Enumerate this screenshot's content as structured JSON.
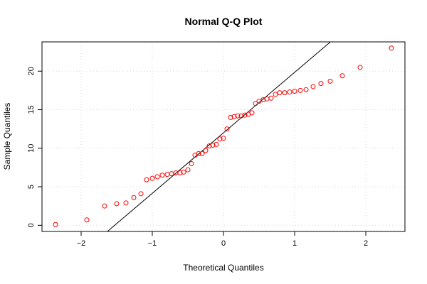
{
  "chart_data": {
    "type": "scatter",
    "title": "Normal Q-Q Plot",
    "xlabel": "Theoretical Quantiles",
    "ylabel": "Sample Quantiles",
    "xlim": [
      -2.55,
      2.55
    ],
    "ylim": [
      -0.8,
      23.8
    ],
    "x_ticks": [
      -2,
      -1,
      0,
      1,
      2
    ],
    "x_tick_labels": [
      "−2",
      "−1",
      "0",
      "1",
      "2"
    ],
    "y_ticks": [
      0,
      5,
      10,
      15,
      20
    ],
    "y_tick_labels": [
      "0",
      "5",
      "10",
      "15",
      "20"
    ],
    "grid": true,
    "point_color": "#ff0000",
    "reference_line": {
      "slope": 7.85,
      "intercept": 12.0
    },
    "x": [
      -2.36,
      -1.92,
      -1.67,
      -1.5,
      -1.37,
      -1.26,
      -1.16,
      -1.08,
      -1.0,
      -0.93,
      -0.86,
      -0.79,
      -0.73,
      -0.67,
      -0.61,
      -0.56,
      -0.5,
      -0.45,
      -0.4,
      -0.35,
      -0.3,
      -0.25,
      -0.2,
      -0.15,
      -0.1,
      -0.05,
      0.0,
      0.05,
      0.1,
      0.15,
      0.2,
      0.25,
      0.3,
      0.35,
      0.4,
      0.45,
      0.5,
      0.56,
      0.61,
      0.67,
      0.73,
      0.79,
      0.86,
      0.93,
      1.0,
      1.08,
      1.16,
      1.26,
      1.37,
      1.5,
      1.67,
      1.92,
      2.36
    ],
    "y": [
      0.1,
      0.7,
      2.5,
      2.8,
      2.9,
      3.6,
      4.1,
      5.9,
      6.1,
      6.3,
      6.5,
      6.6,
      6.7,
      6.8,
      6.8,
      6.9,
      7.2,
      8.0,
      9.1,
      9.3,
      9.3,
      9.7,
      10.3,
      10.4,
      10.5,
      11.2,
      11.3,
      12.5,
      14.0,
      14.1,
      14.2,
      14.2,
      14.3,
      14.4,
      14.6,
      15.8,
      16.1,
      16.3,
      16.4,
      16.5,
      17.0,
      17.2,
      17.2,
      17.3,
      17.4,
      17.5,
      17.6,
      18.0,
      18.4,
      18.7,
      19.4,
      20.5,
      23.0
    ]
  }
}
